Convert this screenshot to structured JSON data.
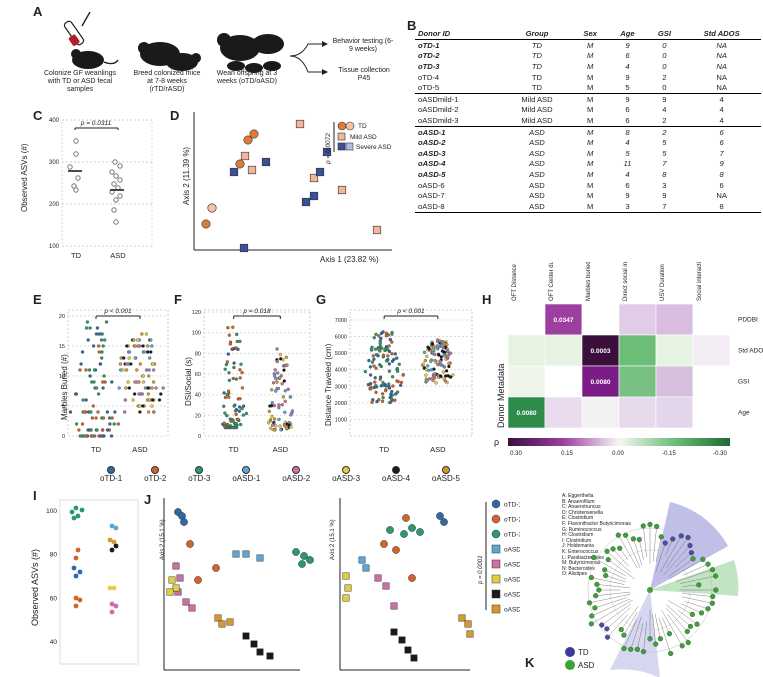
{
  "panels": {
    "A": {
      "letter": "A",
      "steps": [
        "Colonize GF weanlings with TD or ASD fecal samples",
        "Breed colonized mice at 7-8 weeks (rTD/rASD)",
        "Wean offspring at 3 weeks (oTD/oASD)"
      ],
      "outcomes": [
        "Behavior testing (6-9 weeks)",
        "Tissue collection P45"
      ]
    },
    "B": {
      "letter": "B",
      "columns": [
        "Donor ID",
        "Group",
        "Sex",
        "Age",
        "GSI",
        "Std ADOS"
      ],
      "rows": [
        [
          "oTD-1",
          "TD",
          "M",
          "9",
          "0",
          "NA"
        ],
        [
          "oTD-2",
          "TD",
          "M",
          "6",
          "0",
          "NA"
        ],
        [
          "oTD-3",
          "TD",
          "M",
          "4",
          "0",
          "NA"
        ],
        [
          "oTD-4",
          "TD",
          "M",
          "9",
          "2",
          "NA"
        ],
        [
          "oTD-5",
          "TD",
          "M",
          "5",
          "0",
          "NA"
        ],
        [
          "oASDmild-1",
          "Mild ASD",
          "M",
          "9",
          "9",
          "4"
        ],
        [
          "oASDmild-2",
          "Mild ASD",
          "M",
          "6",
          "4",
          "4"
        ],
        [
          "oASDmild-3",
          "Mild ASD",
          "M",
          "6",
          "2",
          "4"
        ],
        [
          "oASD-1",
          "ASD",
          "M",
          "8",
          "2",
          "6"
        ],
        [
          "oASD-2",
          "ASD",
          "M",
          "4",
          "5",
          "6"
        ],
        [
          "oASD-3",
          "ASD",
          "M",
          "5",
          "5",
          "7"
        ],
        [
          "oASD-4",
          "ASD",
          "M",
          "11",
          "7",
          "9"
        ],
        [
          "oASD-5",
          "ASD",
          "M",
          "4",
          "8",
          "8"
        ],
        [
          "oASD-6",
          "ASD",
          "M",
          "6",
          "3",
          "6"
        ],
        [
          "oASD-7",
          "ASD",
          "M",
          "9",
          "9",
          "NA"
        ],
        [
          "oASD-8",
          "ASD",
          "M",
          "3",
          "7",
          "8"
        ]
      ]
    },
    "C": {
      "letter": "C",
      "ylabel": "Observed ASVs (#)",
      "pvalue": "p = 0.0311",
      "groups": [
        "TD",
        "ASD"
      ]
    },
    "D": {
      "letter": "D",
      "xlabel": "Axis 1 (23.82 %)",
      "ylabel": "Axis 2 (11.39 %)",
      "pvalue": "p = 0.0072",
      "legend": [
        "TD",
        "Mild ASD",
        "Severe ASD"
      ]
    },
    "E": {
      "letter": "E",
      "ylabel": "Marbles Buried (#)",
      "pvalue": "p < 0.001",
      "groups": [
        "TD",
        "ASD"
      ]
    },
    "F": {
      "letter": "F",
      "ylabel": "DSI/Social (s)",
      "pvalue": "p = 0.018",
      "groups": [
        "TD",
        "ASD"
      ]
    },
    "G": {
      "letter": "G",
      "ylabel": "Distance Traveled (cm)",
      "pvalue": "p < 0.001",
      "groups": [
        "TD",
        "ASD"
      ]
    },
    "H": {
      "letter": "H",
      "cols": [
        "OFT Distance traveled",
        "OFT Center duration",
        "Marbles buried",
        "Direct social interaction",
        "USV Duration",
        "Social interaction index"
      ],
      "rows": [
        "PDDBI",
        "Std ADOS",
        "GSI",
        "Age"
      ],
      "ylabel": "Donor Metadata",
      "labels": [
        "0.0347",
        "0.0003",
        "0.0080",
        "0.0080"
      ],
      "colorbar_title": "ρ",
      "colorbar_ticks": [
        "0.30",
        "0.15",
        "0.00",
        "-0.15",
        "-0.30"
      ]
    },
    "I": {
      "letter": "I",
      "ylabel": "Observed ASVs (#)"
    },
    "J": {
      "letter": "J",
      "ylabel": "Axis 2 (15.1 %)",
      "pvalue": "p = 0.0001",
      "legend": [
        "oTD-1",
        "oTD-2",
        "oTD-3",
        "oASD-1",
        "oASD-2",
        "oASD-3",
        "oASD-4",
        "oASD-5"
      ]
    },
    "K": {
      "letter": "K",
      "taxa": [
        "A: Eggerthella",
        "B: Anaerofilum",
        "C: Anaerotruncus",
        "D: Christensenella",
        "E: Clostridium",
        "F: Flavonifractor Butyricimonas",
        "G: Ruminococcus",
        "H: Clostridium",
        "I: Clostridium",
        "J: Holdemania",
        "K: Enterococcus",
        "L: Parabacteroides",
        "M: Butyricimonas",
        "N: Bacteroides",
        "O: Alistipes"
      ],
      "legend": [
        "TD",
        "ASD"
      ]
    }
  },
  "donor_legend": [
    "oTD-1",
    "oTD-2",
    "oTD-3",
    "oASD-1",
    "oASD-2",
    "oASD-3",
    "oASD-4",
    "oASD-5"
  ],
  "colors": {
    "oTD-1": "#2e6aa6",
    "oTD-2": "#d4622a",
    "oTD-3": "#2a9a6a",
    "oASD-1": "#5aa6d8",
    "oASD-2": "#cc6fa4",
    "oASD-3": "#e2cf3e",
    "oASD-4": "#1a1a1a",
    "oASD-5": "#d79a2a",
    "td": "#e07a3a",
    "mild": "#f2b49a",
    "severe": "#3b4f9a"
  }
}
